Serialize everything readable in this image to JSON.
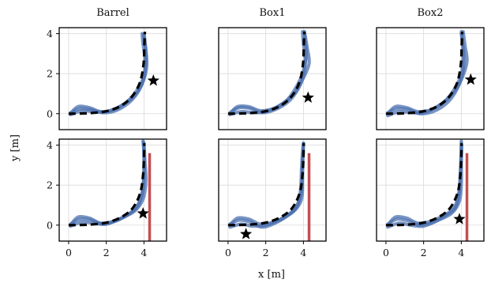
{
  "chart_data": {
    "type": "line",
    "xlabel": "x [m]",
    "ylabel": "y [m]",
    "xlim": [
      -0.5,
      5.2
    ],
    "ylim": [
      -0.8,
      4.3
    ],
    "xticks": [
      0,
      2,
      4
    ],
    "yticks": [
      0,
      2,
      4
    ],
    "grid": true,
    "colors": {
      "trajectories": "#4c72b0",
      "reference": "#000000",
      "obstacle": "#c44e52",
      "goal_marker": "#000000"
    },
    "column_titles": [
      "Barrel",
      "Box1",
      "Box2"
    ],
    "panels": [
      {
        "row": 0,
        "col": 0,
        "reference": [
          [
            0,
            0
          ],
          [
            1,
            0.02
          ],
          [
            2,
            0.12
          ],
          [
            2.8,
            0.4
          ],
          [
            3.4,
            0.9
          ],
          [
            3.8,
            1.6
          ],
          [
            3.98,
            2.5
          ],
          [
            4.02,
            3.4
          ],
          [
            4.05,
            4.1
          ]
        ],
        "trajectories": [
          [
            [
              0.1,
              0.05
            ],
            [
              0.6,
              0.25
            ],
            [
              1.2,
              0.2
            ],
            [
              1.8,
              0.05
            ],
            [
              2.5,
              0.15
            ],
            [
              3.2,
              0.55
            ],
            [
              3.7,
              1.1
            ],
            [
              4.0,
              1.8
            ],
            [
              4.05,
              2.7
            ],
            [
              3.95,
              3.5
            ],
            [
              3.9,
              4.0
            ]
          ],
          [
            [
              0.1,
              -0.05
            ],
            [
              0.7,
              0.15
            ],
            [
              1.3,
              0.1
            ],
            [
              2.0,
              0.1
            ],
            [
              2.8,
              0.4
            ],
            [
              3.5,
              0.9
            ],
            [
              3.95,
              1.6
            ],
            [
              4.15,
              2.4
            ],
            [
              4.1,
              3.2
            ],
            [
              4.0,
              3.9
            ]
          ],
          [
            [
              0.1,
              0.0
            ],
            [
              0.5,
              0.35
            ],
            [
              1.1,
              0.3
            ],
            [
              1.7,
              0.1
            ],
            [
              2.4,
              0.2
            ],
            [
              3.1,
              0.6
            ],
            [
              3.65,
              1.2
            ],
            [
              4.0,
              1.9
            ],
            [
              4.1,
              2.8
            ],
            [
              4.05,
              3.6
            ],
            [
              4.0,
              4.0
            ]
          ]
        ],
        "goal": [
          4.5,
          1.65
        ],
        "obstacle": null
      },
      {
        "row": 0,
        "col": 1,
        "reference": [
          [
            0,
            0
          ],
          [
            1,
            0.02
          ],
          [
            2,
            0.12
          ],
          [
            2.8,
            0.4
          ],
          [
            3.4,
            0.9
          ],
          [
            3.8,
            1.6
          ],
          [
            3.98,
            2.5
          ],
          [
            4.02,
            3.4
          ],
          [
            4.05,
            4.1
          ]
        ],
        "trajectories": [
          [
            [
              0.1,
              0.05
            ],
            [
              0.6,
              0.3
            ],
            [
              1.2,
              0.25
            ],
            [
              1.8,
              0.05
            ],
            [
              2.5,
              0.2
            ],
            [
              3.2,
              0.6
            ],
            [
              3.7,
              1.2
            ],
            [
              4.0,
              1.9
            ],
            [
              4.1,
              2.7
            ],
            [
              4.0,
              3.5
            ],
            [
              3.95,
              4.1
            ]
          ],
          [
            [
              0.1,
              -0.05
            ],
            [
              0.7,
              0.1
            ],
            [
              1.3,
              0.05
            ],
            [
              2.0,
              0.1
            ],
            [
              2.8,
              0.45
            ],
            [
              3.5,
              1.0
            ],
            [
              3.95,
              1.7
            ],
            [
              4.3,
              2.5
            ],
            [
              4.2,
              3.3
            ],
            [
              4.05,
              4.1
            ]
          ],
          [
            [
              0.1,
              0.0
            ],
            [
              0.5,
              0.35
            ],
            [
              1.1,
              0.35
            ],
            [
              1.7,
              0.15
            ],
            [
              2.4,
              0.25
            ],
            [
              3.1,
              0.65
            ],
            [
              3.6,
              1.3
            ],
            [
              3.95,
              2.0
            ],
            [
              4.15,
              2.9
            ],
            [
              4.1,
              3.6
            ],
            [
              4.05,
              4.1
            ]
          ]
        ],
        "goal": [
          4.25,
          0.8
        ],
        "obstacle": null
      },
      {
        "row": 0,
        "col": 2,
        "reference": [
          [
            0,
            0
          ],
          [
            1,
            0.02
          ],
          [
            2,
            0.12
          ],
          [
            2.8,
            0.4
          ],
          [
            3.4,
            0.9
          ],
          [
            3.8,
            1.6
          ],
          [
            3.98,
            2.5
          ],
          [
            4.02,
            3.4
          ],
          [
            4.05,
            4.1
          ]
        ],
        "trajectories": [
          [
            [
              0.1,
              0.05
            ],
            [
              0.6,
              0.25
            ],
            [
              1.2,
              0.2
            ],
            [
              1.8,
              0.0
            ],
            [
              2.5,
              0.1
            ],
            [
              3.2,
              0.5
            ],
            [
              3.7,
              1.1
            ],
            [
              4.05,
              1.9
            ],
            [
              4.15,
              2.8
            ],
            [
              4.05,
              3.6
            ],
            [
              4.0,
              4.1
            ]
          ],
          [
            [
              0.1,
              -0.1
            ],
            [
              0.7,
              0.1
            ],
            [
              1.3,
              0.05
            ],
            [
              2.0,
              0.05
            ],
            [
              2.8,
              0.4
            ],
            [
              3.5,
              0.95
            ],
            [
              4.0,
              1.7
            ],
            [
              4.3,
              2.6
            ],
            [
              4.2,
              3.4
            ],
            [
              4.1,
              4.1
            ]
          ],
          [
            [
              0.1,
              0.0
            ],
            [
              0.5,
              0.35
            ],
            [
              1.1,
              0.3
            ],
            [
              1.7,
              0.1
            ],
            [
              2.4,
              0.2
            ],
            [
              3.1,
              0.6
            ],
            [
              3.65,
              1.25
            ],
            [
              4.0,
              2.0
            ],
            [
              4.1,
              2.9
            ],
            [
              4.05,
              3.7
            ],
            [
              4.0,
              4.0
            ]
          ]
        ],
        "goal": [
          4.5,
          1.7
        ],
        "obstacle": null
      },
      {
        "row": 1,
        "col": 0,
        "reference": [
          [
            0,
            0
          ],
          [
            1,
            0.02
          ],
          [
            2,
            0.12
          ],
          [
            2.8,
            0.4
          ],
          [
            3.4,
            0.85
          ],
          [
            3.8,
            1.6
          ],
          [
            3.95,
            2.5
          ],
          [
            4.0,
            3.4
          ],
          [
            4.02,
            4.1
          ]
        ],
        "trajectories": [
          [
            [
              0.1,
              0.05
            ],
            [
              0.6,
              0.3
            ],
            [
              1.2,
              0.25
            ],
            [
              1.8,
              0.05
            ],
            [
              2.5,
              0.2
            ],
            [
              3.2,
              0.55
            ],
            [
              3.7,
              1.0
            ],
            [
              3.95,
              1.8
            ],
            [
              4.0,
              2.8
            ],
            [
              4.0,
              3.6
            ],
            [
              3.95,
              4.2
            ]
          ],
          [
            [
              0.1,
              -0.05
            ],
            [
              0.7,
              0.15
            ],
            [
              1.3,
              0.1
            ],
            [
              2.0,
              0.05
            ],
            [
              2.8,
              0.35
            ],
            [
              3.5,
              0.7
            ],
            [
              3.95,
              1.3
            ],
            [
              4.1,
              2.2
            ],
            [
              4.05,
              3.2
            ],
            [
              4.0,
              4.1
            ]
          ],
          [
            [
              0.1,
              0.0
            ],
            [
              0.5,
              0.4
            ],
            [
              1.1,
              0.35
            ],
            [
              1.7,
              0.1
            ],
            [
              2.4,
              0.2
            ],
            [
              3.1,
              0.5
            ],
            [
              3.6,
              0.9
            ],
            [
              3.9,
              1.6
            ],
            [
              4.0,
              2.6
            ],
            [
              4.0,
              3.5
            ],
            [
              3.98,
              4.15
            ]
          ]
        ],
        "goal": [
          3.95,
          0.58
        ],
        "obstacle": {
          "x": 4.3,
          "y_from": -0.8,
          "y_to": 3.6
        }
      },
      {
        "row": 1,
        "col": 1,
        "reference": [
          [
            0,
            0
          ],
          [
            1,
            0.02
          ],
          [
            2,
            0.12
          ],
          [
            2.8,
            0.4
          ],
          [
            3.4,
            0.85
          ],
          [
            3.8,
            1.6
          ],
          [
            3.95,
            2.5
          ],
          [
            4.0,
            3.4
          ],
          [
            4.02,
            4.1
          ]
        ],
        "trajectories": [
          [
            [
              0.1,
              0.05
            ],
            [
              0.6,
              0.25
            ],
            [
              1.2,
              0.15
            ],
            [
              1.8,
              -0.1
            ],
            [
              2.5,
              0.1
            ],
            [
              3.2,
              0.5
            ],
            [
              3.7,
              1.0
            ],
            [
              3.85,
              1.8
            ],
            [
              3.9,
              2.8
            ],
            [
              3.95,
              3.6
            ],
            [
              4.0,
              4.1
            ]
          ],
          [
            [
              0.1,
              -0.1
            ],
            [
              0.7,
              0.05
            ],
            [
              1.3,
              -0.05
            ],
            [
              2.0,
              0.0
            ],
            [
              2.8,
              0.3
            ],
            [
              3.5,
              0.7
            ],
            [
              3.9,
              1.3
            ],
            [
              3.95,
              2.2
            ],
            [
              3.95,
              3.2
            ],
            [
              4.0,
              4.0
            ]
          ],
          [
            [
              0.1,
              0.0
            ],
            [
              0.5,
              0.35
            ],
            [
              1.1,
              0.3
            ],
            [
              1.7,
              0.05
            ],
            [
              2.4,
              0.15
            ],
            [
              3.1,
              0.45
            ],
            [
              3.6,
              0.9
            ],
            [
              3.9,
              1.7
            ],
            [
              3.95,
              2.7
            ],
            [
              3.98,
              3.5
            ],
            [
              4.0,
              4.1
            ]
          ]
        ],
        "goal": [
          0.95,
          -0.45
        ],
        "obstacle": {
          "x": 4.3,
          "y_from": -0.8,
          "y_to": 3.6
        }
      },
      {
        "row": 1,
        "col": 2,
        "reference": [
          [
            0,
            0
          ],
          [
            1,
            0.02
          ],
          [
            2,
            0.12
          ],
          [
            2.8,
            0.4
          ],
          [
            3.4,
            0.85
          ],
          [
            3.8,
            1.6
          ],
          [
            3.95,
            2.5
          ],
          [
            4.0,
            3.4
          ],
          [
            4.02,
            4.1
          ]
        ],
        "trajectories": [
          [
            [
              0.1,
              0.05
            ],
            [
              0.6,
              0.3
            ],
            [
              1.2,
              0.2
            ],
            [
              1.8,
              0.0
            ],
            [
              2.5,
              0.15
            ],
            [
              3.2,
              0.5
            ],
            [
              3.7,
              0.9
            ],
            [
              3.9,
              1.7
            ],
            [
              3.95,
              2.7
            ],
            [
              4.0,
              3.5
            ],
            [
              4.0,
              4.2
            ]
          ],
          [
            [
              0.1,
              -0.1
            ],
            [
              0.7,
              0.1
            ],
            [
              1.3,
              0.0
            ],
            [
              2.0,
              -0.05
            ],
            [
              2.8,
              0.25
            ],
            [
              3.5,
              0.6
            ],
            [
              3.9,
              1.2
            ],
            [
              4.0,
              2.1
            ],
            [
              4.0,
              3.1
            ],
            [
              4.02,
              4.0
            ]
          ],
          [
            [
              0.1,
              0.0
            ],
            [
              0.5,
              0.4
            ],
            [
              1.1,
              0.35
            ],
            [
              1.7,
              0.1
            ],
            [
              2.4,
              0.2
            ],
            [
              3.1,
              0.5
            ],
            [
              3.6,
              0.85
            ],
            [
              3.85,
              1.5
            ],
            [
              3.95,
              2.5
            ],
            [
              3.98,
              3.4
            ],
            [
              4.0,
              4.1
            ]
          ]
        ],
        "goal": [
          3.9,
          0.3
        ],
        "obstacle": {
          "x": 4.3,
          "y_from": -0.8,
          "y_to": 3.6
        }
      }
    ]
  }
}
